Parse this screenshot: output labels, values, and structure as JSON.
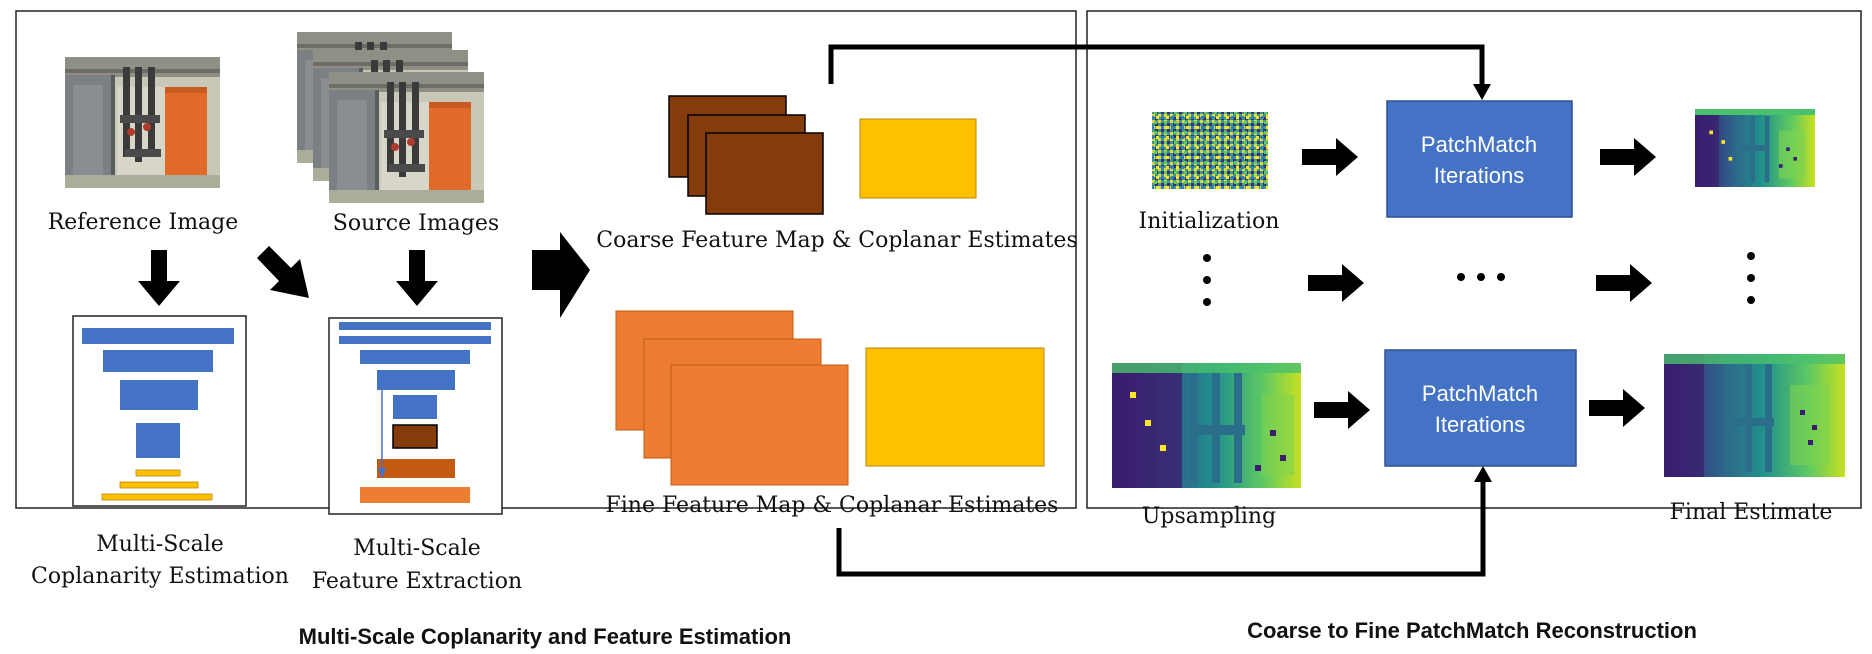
{
  "left_panel": {
    "title": "Multi-Scale Coplanarity and Feature Estimation",
    "reference_label": "Reference Image",
    "source_label": "Source Images",
    "coplanarity_label_1": "Multi-Scale",
    "coplanarity_label_2": "Coplanarity Estimation",
    "feature_label_1": "Multi-Scale",
    "feature_label_2": "Feature Extraction",
    "coarse_label": "Coarse Feature Map & Coplanar Estimates",
    "fine_label": "Fine Feature Map & Coplanar Estimates"
  },
  "right_panel": {
    "title": "Coarse to Fine PatchMatch Reconstruction",
    "initialization_label": "Initialization",
    "upsampling_label": "Upsampling",
    "final_label": "Final Estimate",
    "patchmatch_top_line1": "PatchMatch",
    "patchmatch_top_line2": "Iterations",
    "patchmatch_bottom_line1": "PatchMatch",
    "patchmatch_bottom_line2": "Iterations"
  },
  "colors": {
    "blue_layer": "#4472c4",
    "yellow_layer": "#ffc000",
    "brown_map": "#843c0c",
    "orange_map": "#ed7d31",
    "orange_dark": "#c55a11",
    "patchmatch_box": "#4472c4",
    "arrow": "#000000"
  },
  "icons": {
    "photo": "room-photo-icon",
    "depth": "depth-map-icon",
    "noise": "random-noise-icon"
  }
}
